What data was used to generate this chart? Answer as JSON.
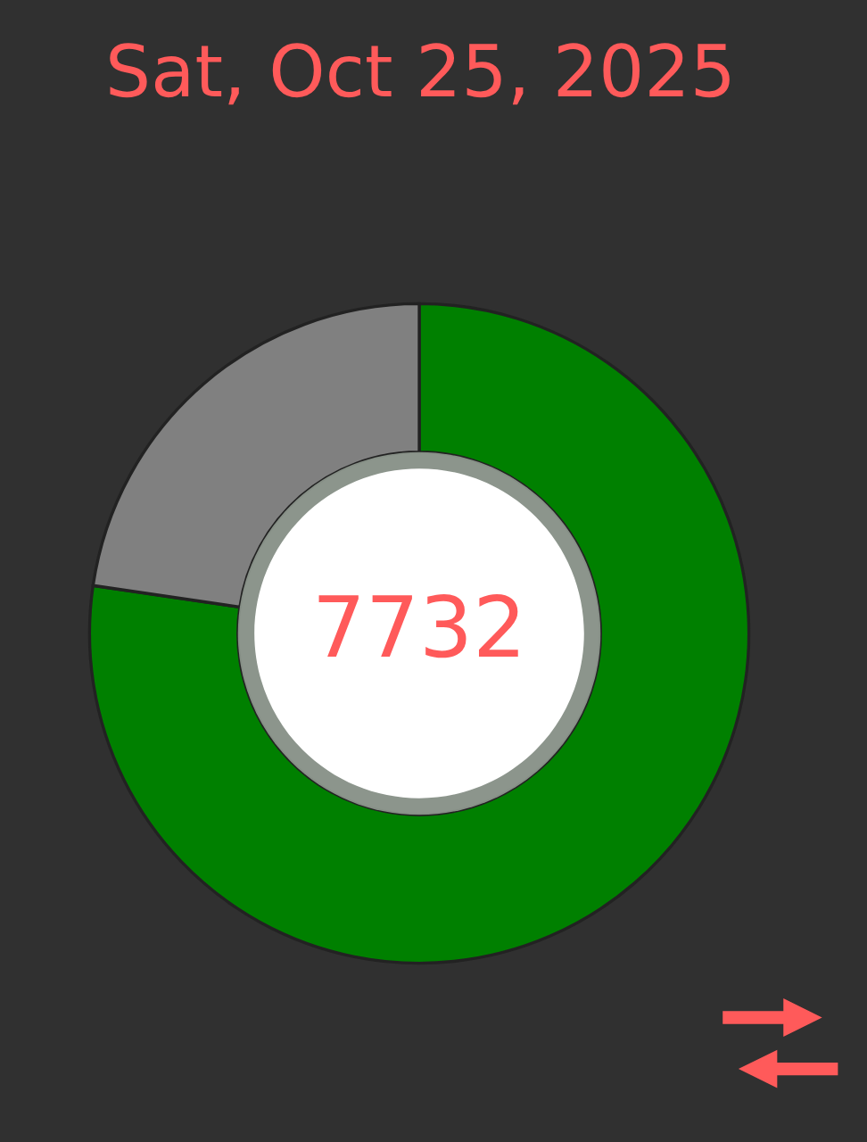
{
  "chart_data": {
    "type": "donut",
    "title": "Sat, Oct 25, 2025",
    "categories": [
      null,
      null
    ],
    "values": [
      77.32,
      22.68
    ],
    "colors": [
      "#008000",
      "#808080"
    ],
    "annotations": [
      "7732"
    ],
    "legend": false
  }
}
